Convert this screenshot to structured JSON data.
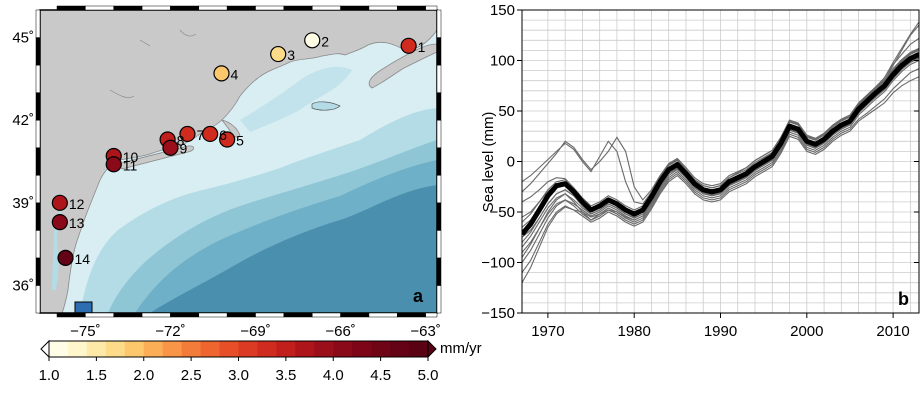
{
  "colors": {
    "land": "#c9c9c9",
    "land_stroke": "#8a8a8a",
    "shelf": "#d8eef3",
    "ocean_light": "#b4dce6",
    "ocean_mid": "#8fc6d6",
    "ocean_deep": "#5e9fbb",
    "ocean_deeper": "#4a8fae",
    "series_gray": "#6a6a6a",
    "mean_black": "#000000",
    "grid": "#cccccc",
    "inset_box": "#2d6eb0"
  },
  "map": {
    "panel_label": "a",
    "lon_ticks": [
      "−75˚",
      "−72˚",
      "−69˚",
      "−66˚",
      "−63˚"
    ],
    "lon_values": [
      -75,
      -72,
      -69,
      -66,
      -63
    ],
    "lat_ticks": [
      "45˚",
      "42˚",
      "39˚",
      "36˚"
    ],
    "lat_values": [
      45,
      42,
      39,
      36
    ],
    "xlim": [
      -76.6,
      -62.6
    ],
    "ylim": [
      35.0,
      46.0
    ],
    "stations": [
      {
        "id": "1",
        "lon": -63.6,
        "lat": 44.7,
        "rate": 3.2
      },
      {
        "id": "2",
        "lon": -67.0,
        "lat": 44.9,
        "rate": 1.2
      },
      {
        "id": "3",
        "lon": -68.2,
        "lat": 44.4,
        "rate": 1.6
      },
      {
        "id": "4",
        "lon": -70.2,
        "lat": 43.7,
        "rate": 1.8
      },
      {
        "id": "5",
        "lon": -70.0,
        "lat": 41.3,
        "rate": 3.4
      },
      {
        "id": "6",
        "lon": -70.6,
        "lat": 41.5,
        "rate": 3.3
      },
      {
        "id": "7",
        "lon": -71.4,
        "lat": 41.5,
        "rate": 3.2
      },
      {
        "id": "8",
        "lon": -72.1,
        "lat": 41.3,
        "rate": 3.5
      },
      {
        "id": "9",
        "lon": -72.0,
        "lat": 41.0,
        "rate": 3.9
      },
      {
        "id": "10",
        "lon": -74.0,
        "lat": 40.7,
        "rate": 3.7
      },
      {
        "id": "11",
        "lon": -74.0,
        "lat": 40.4,
        "rate": 4.0
      },
      {
        "id": "12",
        "lon": -75.9,
        "lat": 39.0,
        "rate": 3.6
      },
      {
        "id": "13",
        "lon": -75.9,
        "lat": 38.3,
        "rate": 4.0
      },
      {
        "id": "14",
        "lon": -75.7,
        "lat": 37.0,
        "rate": 4.7
      }
    ]
  },
  "colorbar": {
    "unit": "mm/yr",
    "tick_labels": [
      "1.0",
      "1.5",
      "2.0",
      "2.5",
      "3.0",
      "3.5",
      "4.0",
      "4.5",
      "5.0"
    ],
    "min": 1.0,
    "max": 5.0,
    "step": 0.2,
    "colors": [
      "#fffde6",
      "#fff6cc",
      "#fee9a9",
      "#fddb88",
      "#fdc76c",
      "#fcae56",
      "#f99546",
      "#f47c3a",
      "#ee6530",
      "#e64f28",
      "#db3b22",
      "#cf2b1e",
      "#c01f1c",
      "#ad151b",
      "#9a0f1a",
      "#8a0a19",
      "#7c0618",
      "#700417",
      "#650316",
      "#5a0214"
    ]
  },
  "chart_data": {
    "type": "line",
    "panel_label": "b",
    "ylabel": "Sea level (mm)",
    "xlim": [
      1967,
      2013
    ],
    "ylim": [
      -150,
      150
    ],
    "x_ticks": [
      1970,
      1980,
      1990,
      2000,
      2010
    ],
    "x_tick_labels": [
      "1970",
      "1980",
      "1990",
      "2000",
      "2010"
    ],
    "y_ticks": [
      -150,
      -100,
      -50,
      0,
      50,
      100,
      150
    ],
    "y_tick_labels": [
      "−150",
      "−100",
      "−50",
      "0",
      "50",
      "100",
      "150"
    ],
    "grid": true,
    "mean_series": {
      "x": [
        1967,
        1968,
        1969,
        1970,
        1971,
        1972,
        1973,
        1974,
        1975,
        1976,
        1977,
        1978,
        1979,
        1980,
        1981,
        1982,
        1983,
        1984,
        1985,
        1986,
        1987,
        1988,
        1989,
        1990,
        1991,
        1992,
        1993,
        1994,
        1995,
        1996,
        1997,
        1998,
        1999,
        2000,
        2001,
        2002,
        2003,
        2004,
        2005,
        2006,
        2007,
        2008,
        2009,
        2010,
        2011,
        2012,
        2013
      ],
      "y": [
        -72,
        -62,
        -48,
        -34,
        -24,
        -22,
        -30,
        -40,
        -48,
        -44,
        -38,
        -42,
        -48,
        -52,
        -48,
        -35,
        -20,
        -8,
        -3,
        -12,
        -22,
        -28,
        -30,
        -28,
        -20,
        -16,
        -12,
        -5,
        0,
        5,
        18,
        35,
        32,
        20,
        17,
        22,
        30,
        36,
        40,
        52,
        60,
        68,
        75,
        86,
        95,
        102,
        106
      ]
    },
    "station_series": [
      {
        "y": [
          -60,
          -52,
          -40,
          -28,
          -20,
          -18,
          -26,
          -36,
          -44,
          -40,
          -34,
          -38,
          -44,
          -48,
          -44,
          -31,
          -16,
          -4,
          1,
          -8,
          -18,
          -24,
          -26,
          -24,
          -16,
          -12,
          -8,
          -1,
          4,
          9,
          22,
          39,
          36,
          24,
          21,
          26,
          34,
          40,
          44,
          56,
          64,
          72,
          79,
          90,
          99,
          106,
          110
        ]
      },
      {
        "y": [
          -85,
          -74,
          -60,
          -46,
          -36,
          -32,
          -40,
          -50,
          -58,
          -52,
          -46,
          -50,
          -56,
          -60,
          -56,
          -43,
          -28,
          -16,
          -10,
          -18,
          -28,
          -34,
          -36,
          -34,
          -26,
          -22,
          -18,
          -11,
          -6,
          -1,
          12,
          29,
          26,
          14,
          11,
          16,
          24,
          30,
          34,
          46,
          54,
          62,
          69,
          80,
          89,
          96,
          100
        ]
      },
      {
        "y": [
          -120,
          -105,
          -85,
          -65,
          -52,
          -45,
          -48,
          -50,
          -55,
          -52,
          -48,
          -50,
          -55,
          -58,
          -54,
          -40,
          -25,
          -12,
          -6,
          -14,
          -24,
          -30,
          -32,
          -30,
          -22,
          -16,
          -10,
          -4,
          2,
          6,
          18,
          34,
          30,
          18,
          15,
          20,
          28,
          34,
          38,
          50,
          60,
          70,
          80,
          95,
          110,
          125,
          135
        ]
      },
      {
        "y": [
          -95,
          -82,
          -66,
          -50,
          -38,
          -32,
          -38,
          -46,
          -52,
          -48,
          -42,
          -46,
          -52,
          -55,
          -50,
          -37,
          -22,
          -10,
          -4,
          -12,
          -22,
          -28,
          -30,
          -28,
          -20,
          -15,
          -10,
          -3,
          3,
          8,
          20,
          37,
          34,
          22,
          19,
          24,
          32,
          38,
          42,
          55,
          64,
          74,
          83,
          96,
          106,
          116,
          122
        ]
      },
      {
        "y": [
          -40,
          -35,
          -28,
          -20,
          -16,
          -17,
          -26,
          -38,
          -48,
          -46,
          -40,
          -44,
          -50,
          -54,
          -50,
          -37,
          -22,
          -10,
          -5,
          -14,
          -24,
          -30,
          -32,
          -30,
          -22,
          -18,
          -14,
          -7,
          -2,
          3,
          16,
          33,
          30,
          18,
          15,
          20,
          28,
          34,
          38,
          50,
          58,
          66,
          73,
          84,
          93,
          100,
          104
        ]
      },
      {
        "y": [
          -20,
          -14,
          -6,
          2,
          10,
          18,
          12,
          0,
          -10,
          5,
          20,
          10,
          -20,
          -40,
          -42,
          -30,
          -15,
          -3,
          2,
          -8,
          -18,
          -24,
          -26,
          -24,
          -16,
          -11,
          -6,
          1,
          6,
          11,
          24,
          41,
          38,
          26,
          23,
          28,
          36,
          42,
          46,
          58,
          66,
          74,
          81,
          92,
          101,
          108,
          112
        ]
      },
      {
        "y": [
          -30,
          -22,
          -12,
          -2,
          8,
          20,
          14,
          2,
          -8,
          0,
          10,
          24,
          10,
          -25,
          -38,
          -28,
          -14,
          -2,
          3,
          -6,
          -16,
          -22,
          -24,
          -22,
          -14,
          -10,
          -6,
          1,
          6,
          11,
          24,
          40,
          37,
          25,
          22,
          27,
          35,
          41,
          45,
          57,
          65,
          73,
          80,
          91,
          100,
          107,
          111
        ]
      },
      {
        "y": [
          -75,
          -68,
          -56,
          -42,
          -32,
          -28,
          -34,
          -44,
          -52,
          -48,
          -42,
          -46,
          -52,
          -56,
          -52,
          -39,
          -24,
          -12,
          -7,
          -16,
          -26,
          -32,
          -34,
          -32,
          -24,
          -20,
          -16,
          -9,
          -4,
          1,
          14,
          31,
          28,
          16,
          13,
          18,
          26,
          32,
          36,
          48,
          56,
          64,
          71,
          82,
          91,
          98,
          102
        ]
      },
      {
        "y": [
          -55,
          -50,
          -40,
          -30,
          -22,
          -20,
          -28,
          -38,
          -46,
          -42,
          -36,
          -40,
          -46,
          -50,
          -46,
          -33,
          -18,
          -6,
          -1,
          -10,
          -20,
          -26,
          -28,
          -26,
          -18,
          -14,
          -10,
          -3,
          2,
          7,
          20,
          37,
          34,
          22,
          19,
          24,
          32,
          38,
          42,
          54,
          62,
          70,
          77,
          88,
          97,
          104,
          108
        ]
      },
      {
        "y": [
          -110,
          -98,
          -80,
          -62,
          -50,
          -44,
          -48,
          -54,
          -60,
          -56,
          -50,
          -54,
          -60,
          -64,
          -60,
          -47,
          -32,
          -20,
          -14,
          -22,
          -32,
          -38,
          -40,
          -38,
          -30,
          -26,
          -22,
          -15,
          -10,
          -5,
          8,
          25,
          22,
          10,
          7,
          12,
          20,
          26,
          30,
          40,
          46,
          52,
          58,
          68,
          75,
          80,
          84
        ]
      },
      {
        "y": [
          -90,
          -80,
          -66,
          -52,
          -42,
          -38,
          -44,
          -52,
          -58,
          -54,
          -48,
          -52,
          -58,
          -62,
          -58,
          -45,
          -30,
          -18,
          -12,
          -20,
          -30,
          -36,
          -38,
          -36,
          -28,
          -24,
          -20,
          -13,
          -8,
          -3,
          10,
          27,
          24,
          12,
          9,
          14,
          22,
          28,
          32,
          42,
          48,
          55,
          62,
          72,
          80,
          88,
          92
        ]
      },
      {
        "y": [
          -65,
          -58,
          -46,
          -34,
          -26,
          -24,
          -32,
          -42,
          -50,
          -46,
          -40,
          -44,
          -50,
          -54,
          -50,
          -37,
          -22,
          -10,
          -4,
          -13,
          -23,
          -29,
          -31,
          -29,
          -21,
          -17,
          -13,
          -6,
          -1,
          4,
          17,
          34,
          31,
          19,
          16,
          21,
          29,
          35,
          39,
          51,
          59,
          67,
          74,
          85,
          94,
          101,
          105
        ]
      },
      {
        "y": [
          -80,
          -70,
          -56,
          -42,
          -32,
          -28,
          -34,
          -44,
          -52,
          -48,
          -42,
          -46,
          -52,
          -56,
          -52,
          -39,
          -24,
          -12,
          -6,
          -15,
          -25,
          -31,
          -33,
          -31,
          -23,
          -19,
          -15,
          -8,
          -3,
          2,
          15,
          32,
          29,
          17,
          14,
          19,
          27,
          33,
          37,
          49,
          57,
          65,
          72,
          83,
          92,
          99,
          103
        ]
      },
      {
        "y": [
          -100,
          -88,
          -72,
          -56,
          -44,
          -38,
          -42,
          -48,
          -54,
          -50,
          -44,
          -48,
          -54,
          -58,
          -54,
          -41,
          -26,
          -14,
          -8,
          -16,
          -26,
          -32,
          -34,
          -32,
          -24,
          -19,
          -14,
          -7,
          -2,
          3,
          16,
          33,
          30,
          18,
          15,
          20,
          28,
          35,
          40,
          53,
          63,
          73,
          83,
          98,
          112,
          126,
          138
        ]
      }
    ]
  }
}
